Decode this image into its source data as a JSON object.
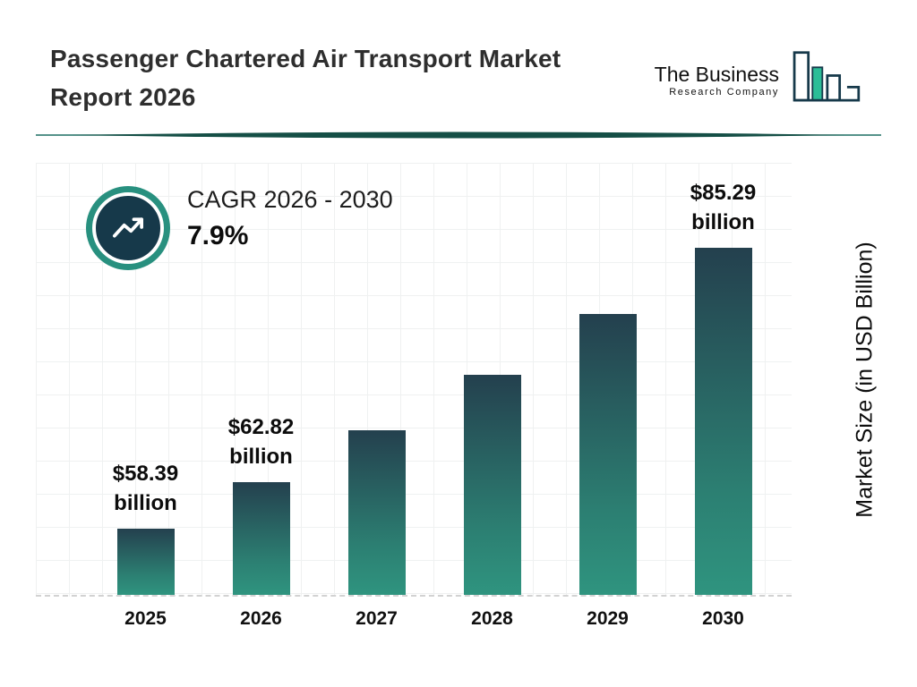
{
  "header": {
    "title_line1": "Passenger Chartered Air Transport Market",
    "title_line2": "Report 2026",
    "logo": {
      "name_line1": "The Business",
      "name_line2": "Research Company"
    }
  },
  "cagr": {
    "label": "CAGR 2026 - 2030",
    "value": "7.9%"
  },
  "chart_data": {
    "type": "bar",
    "title": "Passenger Chartered Air Transport Market Report 2026",
    "categories": [
      "2025",
      "2026",
      "2027",
      "2028",
      "2029",
      "2030"
    ],
    "values": [
      58.39,
      62.82,
      67.78,
      73.14,
      78.92,
      85.29
    ],
    "value_labels": [
      "$58.39 billion",
      "$62.82 billion",
      "",
      "",
      "",
      "$85.29 billion"
    ],
    "xlabel": "",
    "ylabel": "Market Size (in USD Billion)",
    "ylim": [
      52,
      90
    ],
    "grid": true,
    "legend": false,
    "colors": {
      "bar_top": "#24404e",
      "bar_bottom": "#2f947f",
      "accent_teal": "#28907f",
      "navy": "#16394a"
    }
  }
}
